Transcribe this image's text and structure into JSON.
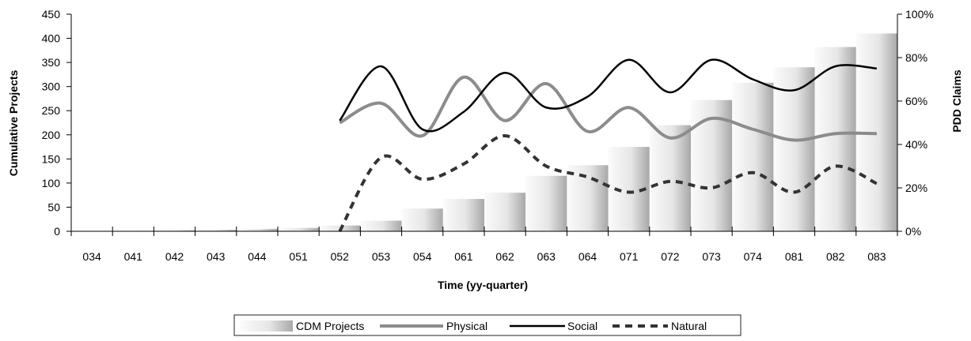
{
  "chart_data": {
    "type": "bar",
    "xlabel": "Time (yy-quarter)",
    "ylabel": "Cumulative Projects",
    "y2label": "PDD Claims",
    "ylim": [
      0,
      450
    ],
    "y2lim": [
      0,
      1.0
    ],
    "yticks": [
      "0",
      "50",
      "100",
      "150",
      "200",
      "250",
      "300",
      "350",
      "400",
      "450"
    ],
    "y2ticks": [
      "0%",
      "20%",
      "40%",
      "60%",
      "80%",
      "100%"
    ],
    "categories": [
      "034",
      "041",
      "042",
      "043",
      "044",
      "051",
      "052",
      "053",
      "054",
      "061",
      "062",
      "063",
      "064",
      "071",
      "072",
      "073",
      "074",
      "081",
      "082",
      "083"
    ],
    "bars": {
      "name": "CDM Projects",
      "values": [
        0,
        1,
        2,
        3,
        5,
        7,
        12,
        22,
        47,
        67,
        80,
        115,
        137,
        175,
        220,
        272,
        308,
        340,
        382,
        410
      ],
      "color_light": "#fbfbfb",
      "color_dark": "#a8a8a8"
    },
    "series": [
      {
        "name": "Physical",
        "color": "#8c8c8c",
        "dash": "solid",
        "values": [
          null,
          null,
          null,
          null,
          null,
          null,
          0.5,
          0.59,
          0.44,
          0.71,
          0.51,
          0.68,
          0.46,
          0.57,
          0.43,
          0.52,
          0.47,
          0.42,
          0.45,
          0.45
        ]
      },
      {
        "name": "Social",
        "color": "#000000",
        "dash": "solid",
        "values": [
          null,
          null,
          null,
          null,
          null,
          null,
          0.51,
          0.76,
          0.47,
          0.55,
          0.73,
          0.57,
          0.62,
          0.79,
          0.64,
          0.79,
          0.7,
          0.65,
          0.76,
          0.75
        ]
      },
      {
        "name": "Natural",
        "color": "#333333",
        "dash": "dashed",
        "values": [
          null,
          null,
          null,
          null,
          null,
          null,
          0.0,
          0.34,
          0.24,
          0.31,
          0.44,
          0.3,
          0.25,
          0.18,
          0.23,
          0.2,
          0.27,
          0.18,
          0.3,
          0.22
        ]
      }
    ],
    "legend": [
      "CDM Projects",
      "Physical",
      "Social",
      "Natural"
    ],
    "legend_position": "bottom",
    "grid": false
  }
}
